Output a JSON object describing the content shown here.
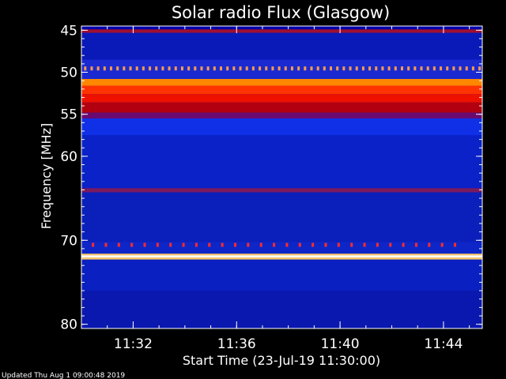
{
  "chart_data": {
    "type": "heatmap",
    "title": "Solar radio Flux (Glasgow)",
    "xlabel": "Start Time (23-Jul-19 11:30:00)",
    "ylabel": "Frequency [MHz]",
    "footer": "Updated Thu Aug  1 09:00:48 2019",
    "x_range_min": [
      0,
      15.5
    ],
    "x_ticks": [
      {
        "minute": 2,
        "label": "11:32"
      },
      {
        "minute": 6,
        "label": "11:36"
      },
      {
        "minute": 10,
        "label": "11:40"
      },
      {
        "minute": 14,
        "label": "11:44"
      }
    ],
    "y_range_mhz": [
      44.5,
      80.5
    ],
    "y_ticks": [
      {
        "mhz": 45,
        "label": "45"
      },
      {
        "mhz": 50,
        "label": "50"
      },
      {
        "mhz": 55,
        "label": "55"
      },
      {
        "mhz": 60,
        "label": "60"
      },
      {
        "mhz": 70,
        "label": "70"
      },
      {
        "mhz": 80,
        "label": "80"
      }
    ],
    "bands": [
      {
        "from": 44.5,
        "to": 44.9,
        "color": "#0000aa"
      },
      {
        "from": 44.9,
        "to": 45.3,
        "color": "#a01030"
      },
      {
        "from": 45.3,
        "to": 48.5,
        "color": "#0a1ab8"
      },
      {
        "from": 48.5,
        "to": 50.8,
        "color": "#1a2ad0"
      },
      {
        "from": 50.8,
        "to": 51.6,
        "color": "#ff8800"
      },
      {
        "from": 51.6,
        "to": 52.6,
        "color": "#ff3300"
      },
      {
        "from": 52.6,
        "to": 53.6,
        "color": "#ee1100"
      },
      {
        "from": 53.6,
        "to": 54.8,
        "color": "#b30010"
      },
      {
        "from": 54.8,
        "to": 55.5,
        "color": "#6a0a70"
      },
      {
        "from": 55.5,
        "to": 57.5,
        "color": "#1030e8"
      },
      {
        "from": 57.5,
        "to": 63.8,
        "color": "#0a22c8"
      },
      {
        "from": 63.8,
        "to": 64.3,
        "color": "#7a1a60"
      },
      {
        "from": 64.3,
        "to": 70.2,
        "color": "#0b1fba"
      },
      {
        "from": 70.2,
        "to": 71.6,
        "color": "#0e26c8"
      },
      {
        "from": 71.6,
        "to": 71.8,
        "color": "#ffcc66"
      },
      {
        "from": 71.8,
        "to": 72.05,
        "color": "#ffffff"
      },
      {
        "from": 72.05,
        "to": 72.3,
        "color": "#ffcc66"
      },
      {
        "from": 72.3,
        "to": 76.0,
        "color": "#0a20c0"
      },
      {
        "from": 76.0,
        "to": 80.5,
        "color": "#0a18b0"
      }
    ],
    "dotted_lines": [
      {
        "mhz": 49.5,
        "color": "#ff9a50",
        "spacing_min": 0.25,
        "start_min": 0.1
      },
      {
        "mhz": 70.5,
        "color": "#ff2a2a",
        "spacing_min": 0.5,
        "start_min": 0.4,
        "end_min": 14.4
      }
    ],
    "colors": {
      "background": "#000000",
      "frame": "#ffffff",
      "text": "#ffffff"
    }
  }
}
